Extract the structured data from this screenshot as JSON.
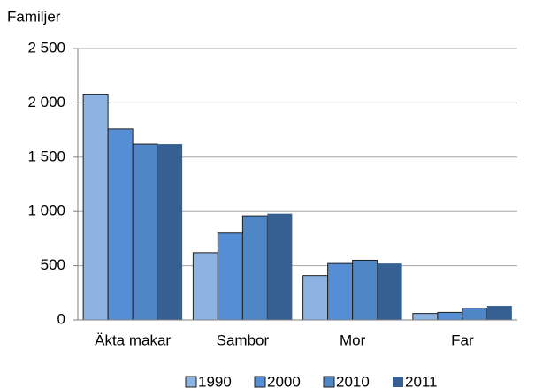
{
  "chart_data": {
    "type": "bar",
    "y_label": "Familjer",
    "categories": [
      "Äkta makar",
      "Sambor",
      "Mor",
      "Far"
    ],
    "series": [
      {
        "name": "1990",
        "color": "#8db3e2",
        "values": [
          2080,
          620,
          410,
          60
        ]
      },
      {
        "name": "2000",
        "color": "#558ed5",
        "values": [
          1760,
          800,
          520,
          70
        ]
      },
      {
        "name": "2010",
        "color": "#4f86c6",
        "values": [
          1620,
          960,
          550,
          110
        ]
      },
      {
        "name": "2011",
        "color": "#376092",
        "values": [
          1620,
          980,
          520,
          130
        ]
      }
    ],
    "ylim": [
      0,
      2500
    ],
    "yticks": [
      0,
      500,
      {
        "value": 1000,
        "label": "1 000"
      },
      {
        "value": 1500,
        "label": "1 500"
      },
      {
        "value": 2000,
        "label": "2 000"
      },
      {
        "value": 2500,
        "label": "2 500"
      }
    ],
    "grid": true,
    "legend": "bottom"
  }
}
